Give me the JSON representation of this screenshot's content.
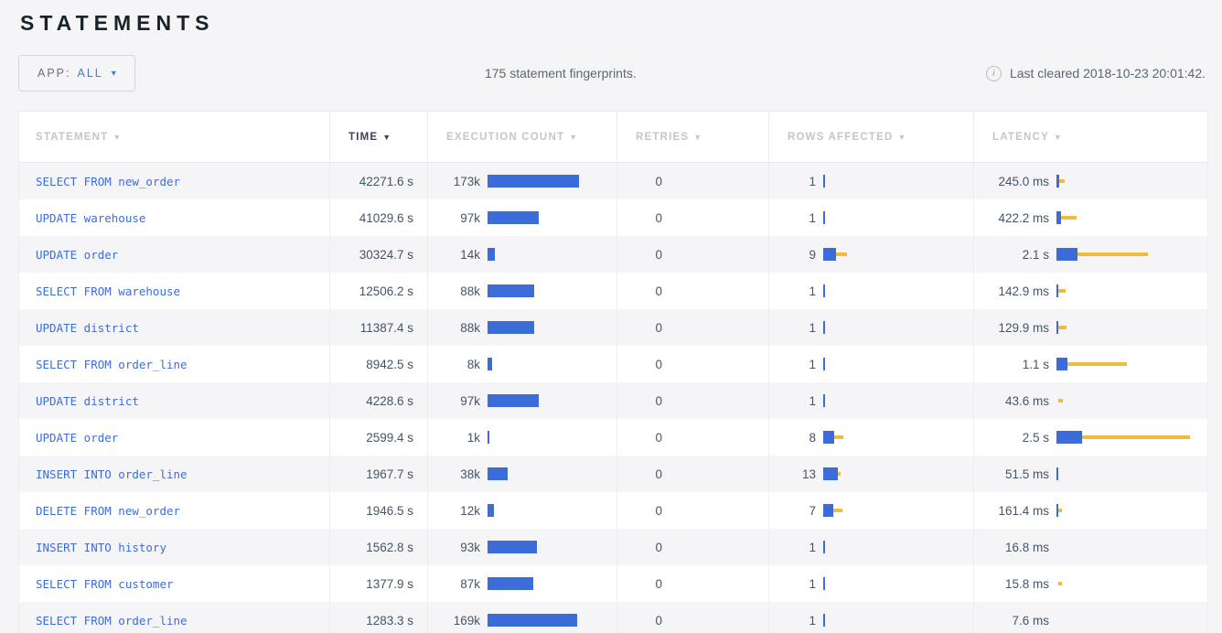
{
  "header": {
    "title": "STATEMENTS"
  },
  "toolbar": {
    "app_label": "APP:",
    "app_value": "ALL",
    "caret": "▾",
    "summary": "175 statement fingerprints.",
    "info_icon": "i",
    "last_cleared": "Last cleared 2018-10-23 20:01:42."
  },
  "colors": {
    "bar_blue": "#3b6cd7",
    "bar_yellow": "#eebd3e",
    "link_blue": "#3e6dd8",
    "sorted_header": "#394455",
    "header_gray": "#c2c6cc"
  },
  "table": {
    "sort_arrow": "▼",
    "columns": [
      {
        "label": "STATEMENT",
        "sorted": false
      },
      {
        "label": "TIME",
        "sorted": true
      },
      {
        "label": "EXECUTION COUNT",
        "sorted": false
      },
      {
        "label": "RETRIES",
        "sorted": false
      },
      {
        "label": "ROWS AFFECTED",
        "sorted": false
      },
      {
        "label": "LATENCY",
        "sorted": false
      }
    ],
    "rows": [
      {
        "statement": "SELECT FROM new_order",
        "time": "42271.6 s",
        "count": {
          "label": "173k",
          "bar": 100
        },
        "retries": "0",
        "rows_affected": {
          "label": "1",
          "bar": 2,
          "dev": [
            0,
            0
          ]
        },
        "latency": {
          "label": "245.0 ms",
          "bar": 3,
          "dev": [
            1,
            9
          ]
        }
      },
      {
        "statement": "UPDATE warehouse",
        "time": "41029.6 s",
        "count": {
          "label": "97k",
          "bar": 56
        },
        "retries": "0",
        "rows_affected": {
          "label": "1",
          "bar": 2,
          "dev": [
            0,
            0
          ]
        },
        "latency": {
          "label": "422.2 ms",
          "bar": 5,
          "dev": [
            2,
            22
          ]
        }
      },
      {
        "statement": "UPDATE order",
        "time": "30324.7 s",
        "count": {
          "label": "14k",
          "bar": 8
        },
        "retries": "0",
        "rows_affected": {
          "label": "9",
          "bar": 14,
          "dev": [
            8,
            26
          ]
        },
        "latency": {
          "label": "2.1 s",
          "bar": 23,
          "dev": [
            0,
            100
          ]
        }
      },
      {
        "statement": "SELECT FROM warehouse",
        "time": "12506.2 s",
        "count": {
          "label": "88k",
          "bar": 51
        },
        "retries": "0",
        "rows_affected": {
          "label": "1",
          "bar": 2,
          "dev": [
            0,
            0
          ]
        },
        "latency": {
          "label": "142.9 ms",
          "bar": 2,
          "dev": [
            0,
            10
          ]
        }
      },
      {
        "statement": "UPDATE district",
        "time": "11387.4 s",
        "count": {
          "label": "88k",
          "bar": 51
        },
        "retries": "0",
        "rows_affected": {
          "label": "1",
          "bar": 2,
          "dev": [
            0,
            0
          ]
        },
        "latency": {
          "label": "129.9 ms",
          "bar": 2,
          "dev": [
            0,
            11
          ]
        }
      },
      {
        "statement": "SELECT FROM order_line",
        "time": "8942.5 s",
        "count": {
          "label": "8k",
          "bar": 5
        },
        "retries": "0",
        "rows_affected": {
          "label": "1",
          "bar": 2,
          "dev": [
            0,
            0
          ]
        },
        "latency": {
          "label": "1.1 s",
          "bar": 12,
          "dev": [
            4,
            77
          ]
        }
      },
      {
        "statement": "UPDATE district",
        "time": "4228.6 s",
        "count": {
          "label": "97k",
          "bar": 56
        },
        "retries": "0",
        "rows_affected": {
          "label": "1",
          "bar": 2,
          "dev": [
            0,
            0
          ]
        },
        "latency": {
          "label": "43.6 ms",
          "bar": 0,
          "dev": [
            2,
            7
          ]
        }
      },
      {
        "statement": "UPDATE order",
        "time": "2599.4 s",
        "count": {
          "label": "1k",
          "bar": 2
        },
        "retries": "0",
        "rows_affected": {
          "label": "8",
          "bar": 12,
          "dev": [
            7,
            22
          ]
        },
        "latency": {
          "label": "2.5 s",
          "bar": 28,
          "dev": [
            0,
            146
          ]
        }
      },
      {
        "statement": "INSERT INTO order_line",
        "time": "1967.7 s",
        "count": {
          "label": "38k",
          "bar": 22
        },
        "retries": "0",
        "rows_affected": {
          "label": "13",
          "bar": 16,
          "dev": [
            13,
            19
          ]
        },
        "latency": {
          "label": "51.5 ms",
          "bar": 2,
          "dev": [
            0,
            0
          ]
        }
      },
      {
        "statement": "DELETE FROM new_order",
        "time": "1946.5 s",
        "count": {
          "label": "12k",
          "bar": 7
        },
        "retries": "0",
        "rows_affected": {
          "label": "7",
          "bar": 11,
          "dev": [
            5,
            21
          ]
        },
        "latency": {
          "label": "161.4 ms",
          "bar": 2,
          "dev": [
            1,
            6
          ]
        }
      },
      {
        "statement": "INSERT INTO history",
        "time": "1562.8 s",
        "count": {
          "label": "93k",
          "bar": 54
        },
        "retries": "0",
        "rows_affected": {
          "label": "1",
          "bar": 2,
          "dev": [
            0,
            0
          ]
        },
        "latency": {
          "label": "16.8 ms",
          "bar": 0,
          "dev": [
            0,
            0
          ]
        }
      },
      {
        "statement": "SELECT FROM customer",
        "time": "1377.9 s",
        "count": {
          "label": "87k",
          "bar": 50
        },
        "retries": "0",
        "rows_affected": {
          "label": "1",
          "bar": 2,
          "dev": [
            0,
            0
          ]
        },
        "latency": {
          "label": "15.8 ms",
          "bar": 0,
          "dev": [
            2,
            6
          ]
        }
      },
      {
        "statement": "SELECT FROM order_line",
        "time": "1283.3 s",
        "count": {
          "label": "169k",
          "bar": 98
        },
        "retries": "0",
        "rows_affected": {
          "label": "1",
          "bar": 2,
          "dev": [
            0,
            0
          ]
        },
        "latency": {
          "label": "7.6 ms",
          "bar": 0,
          "dev": [
            0,
            0
          ]
        }
      }
    ]
  }
}
